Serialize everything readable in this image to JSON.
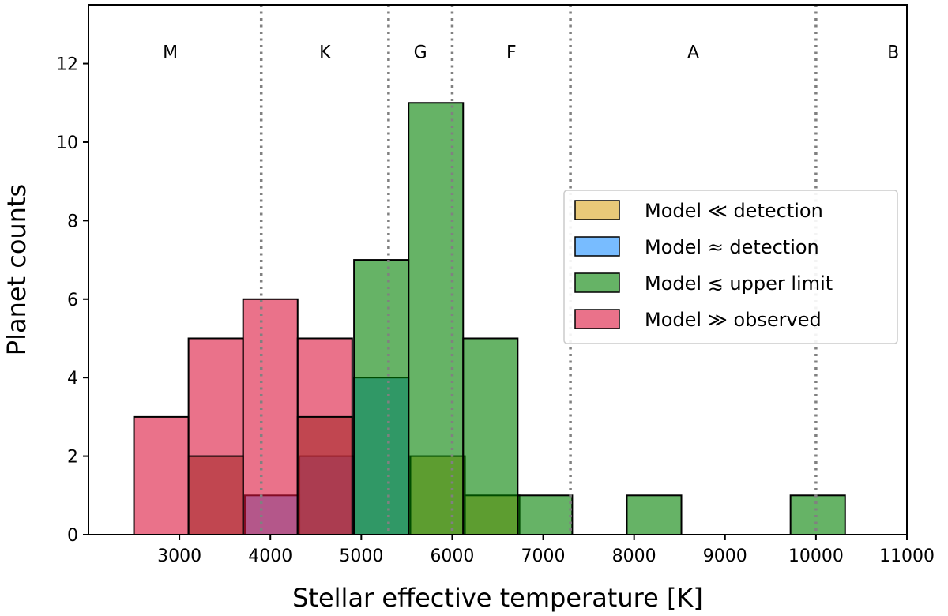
{
  "chart_data": {
    "type": "histogram",
    "title": "",
    "xlabel": "Stellar effective temperature [K]",
    "ylabel": "Planet counts",
    "xlim": [
      2000,
      11000
    ],
    "ylim": [
      0,
      13.5
    ],
    "xticks": [
      3000,
      4000,
      5000,
      6000,
      7000,
      8000,
      9000,
      10000,
      11000
    ],
    "xtick_labels": [
      "3000",
      "4000",
      "5000",
      "6000",
      "7000",
      "8000",
      "9000",
      "10000",
      "11000"
    ],
    "yticks": [
      0,
      2,
      4,
      6,
      8,
      10,
      12
    ],
    "ytick_labels": [
      "0",
      "2",
      "4",
      "6",
      "8",
      "10",
      "12"
    ],
    "bin_width": 600,
    "spectral_boundaries": [
      3900,
      5300,
      6000,
      7300,
      10000
    ],
    "spectral_classes": [
      {
        "label": "M",
        "x": 2900
      },
      {
        "label": "K",
        "x": 4600
      },
      {
        "label": "G",
        "x": 5650
      },
      {
        "label": "F",
        "x": 6650
      },
      {
        "label": "A",
        "x": 8650
      },
      {
        "label": "B",
        "x": 10850
      }
    ],
    "spectral_label_y": 12.3,
    "series": [
      {
        "name": "Model ≪ detection",
        "color": "#DAA520",
        "bins": [
          {
            "start": 5540,
            "count": 2
          },
          {
            "start": 6140,
            "count": 1
          }
        ]
      },
      {
        "name": "Model ≈ detection",
        "color": "#1E90FF",
        "bins": [
          {
            "start": 3720,
            "count": 1
          },
          {
            "start": 4320,
            "count": 2
          },
          {
            "start": 4920,
            "count": 4
          }
        ]
      },
      {
        "name": "Model ≲ upper limit",
        "color": "#008000",
        "bins": [
          {
            "start": 4920,
            "count": 7
          },
          {
            "start": 5520,
            "count": 11
          },
          {
            "start": 6120,
            "count": 5
          },
          {
            "start": 6720,
            "count": 1
          },
          {
            "start": 7920,
            "count": 1
          },
          {
            "start": 9720,
            "count": 1
          }
        ]
      },
      {
        "name": "Model ≫ observed",
        "color": "#DC143C",
        "bins": [
          {
            "start": 2500,
            "count": 3
          },
          {
            "start": 3100,
            "count": 5
          },
          {
            "start": 3700,
            "count": 6
          },
          {
            "start": 4300,
            "count": 5
          }
        ]
      },
      {
        "name": "overlap",
        "color": "#A52A2A",
        "bins": [
          {
            "start": 3100,
            "count": 2
          },
          {
            "start": 4300,
            "count": 3
          }
        ]
      }
    ],
    "legend": [
      {
        "label": "Model ≪ detection",
        "color": "#DAA520"
      },
      {
        "label": "Model ≈ detection",
        "color": "#1E90FF"
      },
      {
        "label": "Model ≲ upper limit",
        "color": "#008000"
      },
      {
        "label": "Model ≫ observed",
        "color": "#DC143C"
      }
    ],
    "legend_position": "center-right",
    "grid": false
  }
}
